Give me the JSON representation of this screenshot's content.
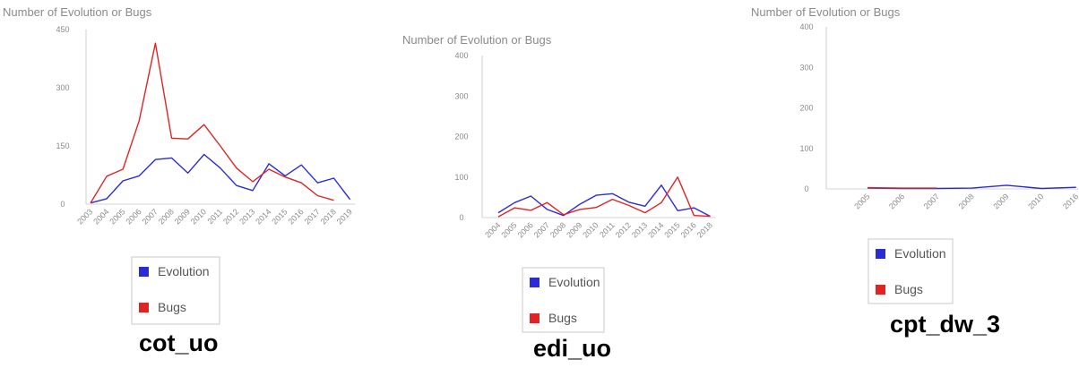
{
  "charts": [
    {
      "name": "cot_uo",
      "caption": "cot_uo",
      "chart_data": {
        "type": "line",
        "title": "",
        "ylabel": "Number of Evolution or Bugs",
        "xlabel": "",
        "ylim": [
          0,
          450
        ],
        "yticks": [
          "450",
          "300",
          "150",
          "0"
        ],
        "x": [
          "2003",
          "2004",
          "2005",
          "2006",
          "2007",
          "2008",
          "2009",
          "2010",
          "2011",
          "2012",
          "2013",
          "2014",
          "2015",
          "2016",
          "2017",
          "2018",
          "2019"
        ],
        "series": [
          {
            "name": "Evolution",
            "color": "#2b2bd6",
            "values": [
              3,
              14,
              60,
              73,
              115,
              119,
              80,
              128,
              93,
              48,
              35,
              104,
              73,
              101,
              55,
              67,
              12
            ]
          },
          {
            "name": "Bugs",
            "color": "#e02424",
            "values": [
              3,
              72,
              90,
              215,
              415,
              170,
              168,
              205,
              150,
              93,
              58,
              90,
              70,
              55,
              22,
              10,
              null
            ]
          }
        ],
        "legend": [
          "Evolution",
          "Bugs"
        ],
        "legend_position": "bottom",
        "grid": false
      }
    },
    {
      "name": "edi_uo",
      "caption": "edi_uo",
      "chart_data": {
        "type": "line",
        "title": "",
        "ylabel": "Number of Evolution or Bugs",
        "xlabel": "",
        "ylim": [
          0,
          400
        ],
        "yticks": [
          "400",
          "300",
          "200",
          "100",
          "0"
        ],
        "x": [
          "2004",
          "2005",
          "2006",
          "2007",
          "2008",
          "2009",
          "2010",
          "2011",
          "2012",
          "2013",
          "2014",
          "2015",
          "2016",
          "2018"
        ],
        "series": [
          {
            "name": "Evolution",
            "color": "#2b2bd6",
            "values": [
              12,
              37,
              53,
              20,
              5,
              33,
              55,
              59,
              38,
              28,
              80,
              17,
              24,
              3
            ]
          },
          {
            "name": "Bugs",
            "color": "#e02424",
            "values": [
              2,
              24,
              18,
              37,
              7,
              20,
              25,
              45,
              30,
              12,
              37,
              100,
              5,
              3
            ]
          }
        ],
        "legend": [
          "Evolution",
          "Bugs"
        ],
        "legend_position": "bottom",
        "grid": false
      }
    },
    {
      "name": "cpt_dw_3",
      "caption": "cpt_dw_3",
      "chart_data": {
        "type": "line",
        "title": "",
        "ylabel": "Number of Evolution or Bugs",
        "xlabel": "",
        "ylim": [
          0,
          400
        ],
        "yticks": [
          "400",
          "300",
          "200",
          "100",
          "0"
        ],
        "x": [
          "2005",
          "2006",
          "2007",
          "2008",
          "2009",
          "2010",
          "2016"
        ],
        "series": [
          {
            "name": "Evolution",
            "color": "#2b2bd6",
            "values": [
              2,
              1,
              1,
              2,
              9,
              1,
              4
            ]
          },
          {
            "name": "Bugs",
            "color": "#e02424",
            "values": [
              3,
              2,
              2,
              null,
              null,
              null,
              null
            ]
          }
        ],
        "legend": [
          "Evolution",
          "Bugs"
        ],
        "legend_position": "bottom",
        "grid": false
      }
    }
  ]
}
